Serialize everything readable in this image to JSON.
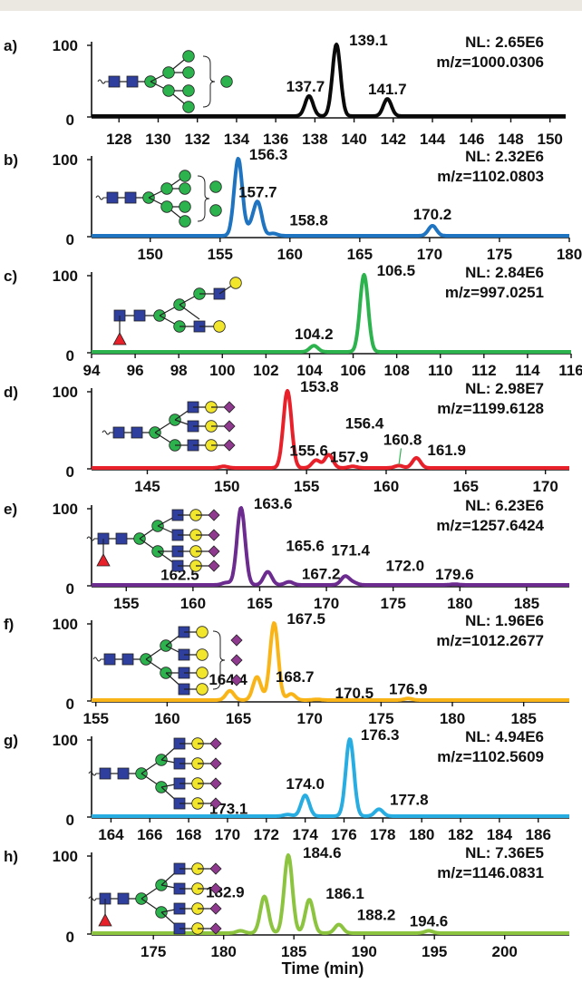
{
  "x_axis_title": "Time (min)",
  "chart_data": [
    {
      "type": "line",
      "panel": "a)",
      "color": "#0a0a0a",
      "yrange": [
        0,
        100
      ],
      "xlim": [
        126.6,
        150.8
      ],
      "ticks": [
        128,
        130,
        132,
        134,
        136,
        138,
        140,
        142,
        144,
        146,
        148,
        150
      ],
      "nl": "NL: 2.65E6",
      "mz": "m/z=1000.0306",
      "y_tick_labels": [
        "100",
        "0"
      ],
      "series": [
        {
          "peaks": [
            [
              137.7,
              28
            ],
            [
              139.1,
              100
            ],
            [
              141.7,
              24
            ]
          ]
        }
      ],
      "labels": [
        {
          "text": "137.7",
          "x": 137.7,
          "y": 28
        },
        {
          "text": "139.1",
          "x": 139.1,
          "y": 100
        },
        {
          "text": "141.7",
          "x": 141.7,
          "y": 24
        }
      ]
    },
    {
      "type": "line",
      "panel": "b)",
      "color": "#1f74c1",
      "yrange": [
        0,
        100
      ],
      "xlim": [
        145.8,
        180
      ],
      "ticks": [
        150,
        155,
        160,
        165,
        170,
        175,
        180
      ],
      "nl": "NL: 2.32E6",
      "mz": "m/z=1102.0803",
      "y_tick_labels": [
        "100",
        "0"
      ],
      "series": [
        {
          "peaks": [
            [
              156.3,
              100
            ],
            [
              157.2,
              10
            ],
            [
              157.7,
              42
            ],
            [
              158.8,
              3
            ],
            [
              170.2,
              13
            ]
          ]
        }
      ],
      "labels": [
        {
          "text": "156.3",
          "x": 156.3,
          "y": 100
        },
        {
          "text": "157.7",
          "x": 157.7,
          "y": 42
        },
        {
          "text": "158.8",
          "x": 158.8,
          "y": 3
        },
        {
          "text": "170.2",
          "x": 170.2,
          "y": 13
        }
      ]
    },
    {
      "type": "line",
      "panel": "c)",
      "color": "#2db34e",
      "yrange": [
        0,
        100
      ],
      "xlim": [
        94,
        116
      ],
      "ticks": [
        94,
        96,
        98,
        100,
        102,
        104,
        106,
        108,
        110,
        112,
        114,
        116
      ],
      "nl": "NL: 2.84E6",
      "mz": "m/z=997.0251",
      "y_tick_labels": [
        "100",
        "0"
      ],
      "series": [
        {
          "peaks": [
            [
              104.2,
              8
            ],
            [
              106.5,
              100
            ]
          ]
        }
      ],
      "labels": [
        {
          "text": "104.2",
          "x": 104.2,
          "y": 8
        },
        {
          "text": "106.5",
          "x": 106.5,
          "y": 100
        }
      ]
    },
    {
      "type": "line",
      "panel": "d)",
      "color": "#e8202a",
      "yrange": [
        0,
        100
      ],
      "xlim": [
        141.5,
        171.5
      ],
      "ticks": [
        145,
        150,
        155,
        160,
        165,
        170
      ],
      "nl": "NL: 2.98E7",
      "mz": "m/z=1199.6128",
      "y_tick_labels": [
        "100",
        "0"
      ],
      "series": [
        {
          "peaks": [
            [
              149.8,
              2
            ],
            [
              153.8,
              100
            ],
            [
              155.6,
              10
            ],
            [
              156.4,
              17
            ],
            [
              157.9,
              2
            ],
            [
              160.8,
              3
            ],
            [
              161.9,
              13
            ]
          ]
        }
      ],
      "labels": [
        {
          "text": "153.8",
          "x": 153.8,
          "y": 100
        },
        {
          "text": "155.6",
          "x": 155.6,
          "y": 10
        },
        {
          "text": "156.4",
          "x": 156.4,
          "y": 17
        },
        {
          "text": "157.9",
          "x": 157.9,
          "y": 2
        },
        {
          "text": "160.8",
          "x": 160.8,
          "y": 3
        },
        {
          "text": "161.9",
          "x": 161.9,
          "y": 13
        }
      ]
    },
    {
      "type": "line",
      "panel": "e)",
      "color": "#6b2b8f",
      "yrange": [
        0,
        100
      ],
      "xlim": [
        152.4,
        188.2
      ],
      "ticks": [
        155,
        160,
        165,
        170,
        175,
        180,
        185
      ],
      "nl": "NL: 6.23E6",
      "mz": "m/z=1257.6424",
      "y_tick_labels": [
        "100",
        "0"
      ],
      "series": [
        {
          "peaks": [
            [
              162.5,
              3
            ],
            [
              163.6,
              100
            ],
            [
              165.6,
              17
            ],
            [
              167.2,
              4
            ],
            [
              171.4,
              11
            ],
            [
              172.0,
              3
            ],
            [
              179.6,
              1
            ]
          ]
        }
      ],
      "labels": [
        {
          "text": "162.5",
          "x": 162.5,
          "y": 3
        },
        {
          "text": "163.6",
          "x": 163.6,
          "y": 100
        },
        {
          "text": "165.6",
          "x": 165.6,
          "y": 17
        },
        {
          "text": "167.2",
          "x": 167.2,
          "y": 4
        },
        {
          "text": "171.4",
          "x": 171.4,
          "y": 11
        },
        {
          "text": "172.0",
          "x": 172.0,
          "y": 3
        },
        {
          "text": "179.6",
          "x": 179.6,
          "y": 1
        }
      ]
    },
    {
      "type": "line",
      "panel": "f)",
      "color": "#f9b418",
      "yrange": [
        0,
        100
      ],
      "xlim": [
        154.7,
        188.2
      ],
      "ticks": [
        155,
        160,
        165,
        170,
        175,
        180,
        185
      ],
      "nl": "NL: 1.96E6",
      "mz": "m/z=1012.2677",
      "y_tick_labels": [
        "100",
        "0"
      ],
      "series": [
        {
          "peaks": [
            [
              164.4,
              12
            ],
            [
              166.3,
              30
            ],
            [
              167.5,
              100
            ],
            [
              168.7,
              8
            ],
            [
              170.5,
              1
            ],
            [
              176.9,
              2
            ]
          ]
        }
      ],
      "labels": [
        {
          "text": "164.4",
          "x": 164.4,
          "y": 12
        },
        {
          "text": "167.5",
          "x": 167.5,
          "y": 100
        },
        {
          "text": "168.7",
          "x": 168.7,
          "y": 8
        },
        {
          "text": "170.5",
          "x": 170.5,
          "y": 1
        },
        {
          "text": "176.9",
          "x": 176.9,
          "y": 2
        }
      ]
    },
    {
      "type": "line",
      "panel": "g)",
      "color": "#27ade1",
      "yrange": [
        0,
        100
      ],
      "xlim": [
        163,
        187.6
      ],
      "ticks": [
        164,
        166,
        168,
        170,
        172,
        174,
        176,
        178,
        180,
        182,
        184,
        186
      ],
      "nl": "NL: 4.94E6",
      "mz": "m/z=1102.5609",
      "y_tick_labels": [
        "100",
        "0"
      ],
      "series": [
        {
          "peaks": [
            [
              173.1,
              2
            ],
            [
              174.0,
              27
            ],
            [
              176.3,
              100
            ],
            [
              177.8,
              9
            ]
          ]
        }
      ],
      "labels": [
        {
          "text": "173.1",
          "x": 173.1,
          "y": 2
        },
        {
          "text": "174.0",
          "x": 174.0,
          "y": 27
        },
        {
          "text": "176.3",
          "x": 176.3,
          "y": 100
        },
        {
          "text": "177.8",
          "x": 177.8,
          "y": 9
        }
      ]
    },
    {
      "type": "line",
      "panel": "h)",
      "color": "#8cc43f",
      "yrange": [
        0,
        100
      ],
      "xlim": [
        170.6,
        204.6
      ],
      "ticks": [
        175,
        180,
        185,
        190,
        195,
        200
      ],
      "nl": "NL: 7.36E5",
      "mz": "m/z=1146.0831",
      "y_tick_labels": [
        "100",
        "0"
      ],
      "series": [
        {
          "peaks": [
            [
              181.2,
              3
            ],
            [
              182.9,
              47
            ],
            [
              184.6,
              100
            ],
            [
              186.1,
              43
            ],
            [
              188.2,
              11
            ],
            [
              194.6,
              3
            ]
          ]
        }
      ],
      "labels": [
        {
          "text": "182.9",
          "x": 182.9,
          "y": 47
        },
        {
          "text": "184.6",
          "x": 184.6,
          "y": 100
        },
        {
          "text": "186.1",
          "x": 186.1,
          "y": 43
        },
        {
          "text": "188.2",
          "x": 188.2,
          "y": 11
        },
        {
          "text": "194.6",
          "x": 194.6,
          "y": 3
        }
      ]
    }
  ],
  "colors": {
    "gal": "#f2e62d",
    "glcnac": "#2f3f9e",
    "man": "#2db34e",
    "fuc": "#e8202a",
    "neuac": "#8f3a8f"
  }
}
